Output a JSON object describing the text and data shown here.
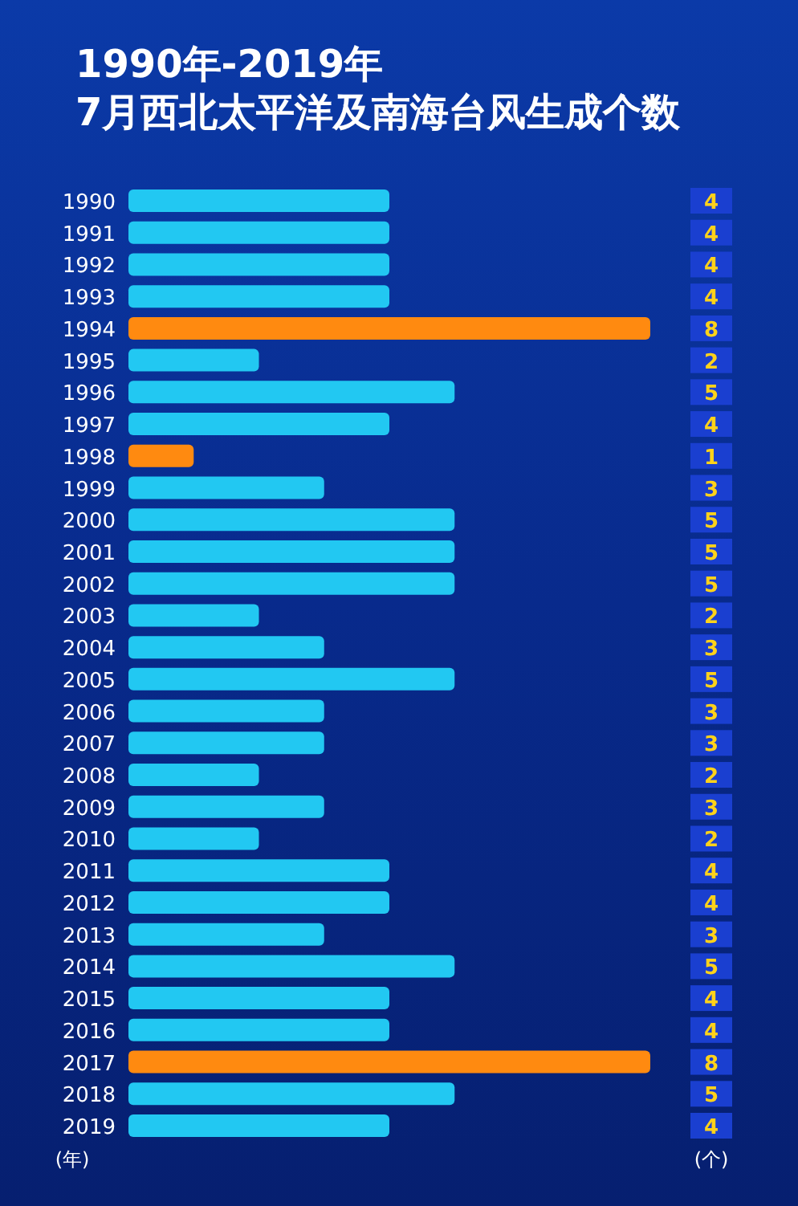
{
  "chart_data": {
    "type": "bar",
    "orientation": "horizontal",
    "title": "1990年-2019年",
    "subtitle": "7月西北太平洋及南海台风生成个数",
    "ylabel": "(年)",
    "xlabel": "(个)",
    "categories": [
      "1990",
      "1991",
      "1992",
      "1993",
      "1994",
      "1995",
      "1996",
      "1997",
      "1998",
      "1999",
      "2000",
      "2001",
      "2002",
      "2003",
      "2004",
      "2005",
      "2006",
      "2007",
      "2008",
      "2009",
      "2010",
      "2011",
      "2012",
      "2013",
      "2014",
      "2015",
      "2016",
      "2017",
      "2018",
      "2019"
    ],
    "values": [
      4,
      4,
      4,
      4,
      8,
      2,
      5,
      4,
      1,
      3,
      5,
      5,
      5,
      2,
      3,
      5,
      3,
      3,
      2,
      3,
      2,
      4,
      4,
      3,
      5,
      4,
      4,
      8,
      5,
      4
    ],
    "colors": [
      "#22c8f2",
      "#22c8f2",
      "#22c8f2",
      "#22c8f2",
      "#ff8a10",
      "#22c8f2",
      "#22c8f2",
      "#22c8f2",
      "#ff8a10",
      "#22c8f2",
      "#22c8f2",
      "#22c8f2",
      "#22c8f2",
      "#22c8f2",
      "#22c8f2",
      "#22c8f2",
      "#22c8f2",
      "#22c8f2",
      "#22c8f2",
      "#22c8f2",
      "#22c8f2",
      "#22c8f2",
      "#22c8f2",
      "#22c8f2",
      "#22c8f2",
      "#22c8f2",
      "#22c8f2",
      "#ff8a10",
      "#22c8f2",
      "#22c8f2"
    ],
    "xlim": [
      0,
      8
    ],
    "data_labels": true,
    "tick_labels": "y"
  }
}
